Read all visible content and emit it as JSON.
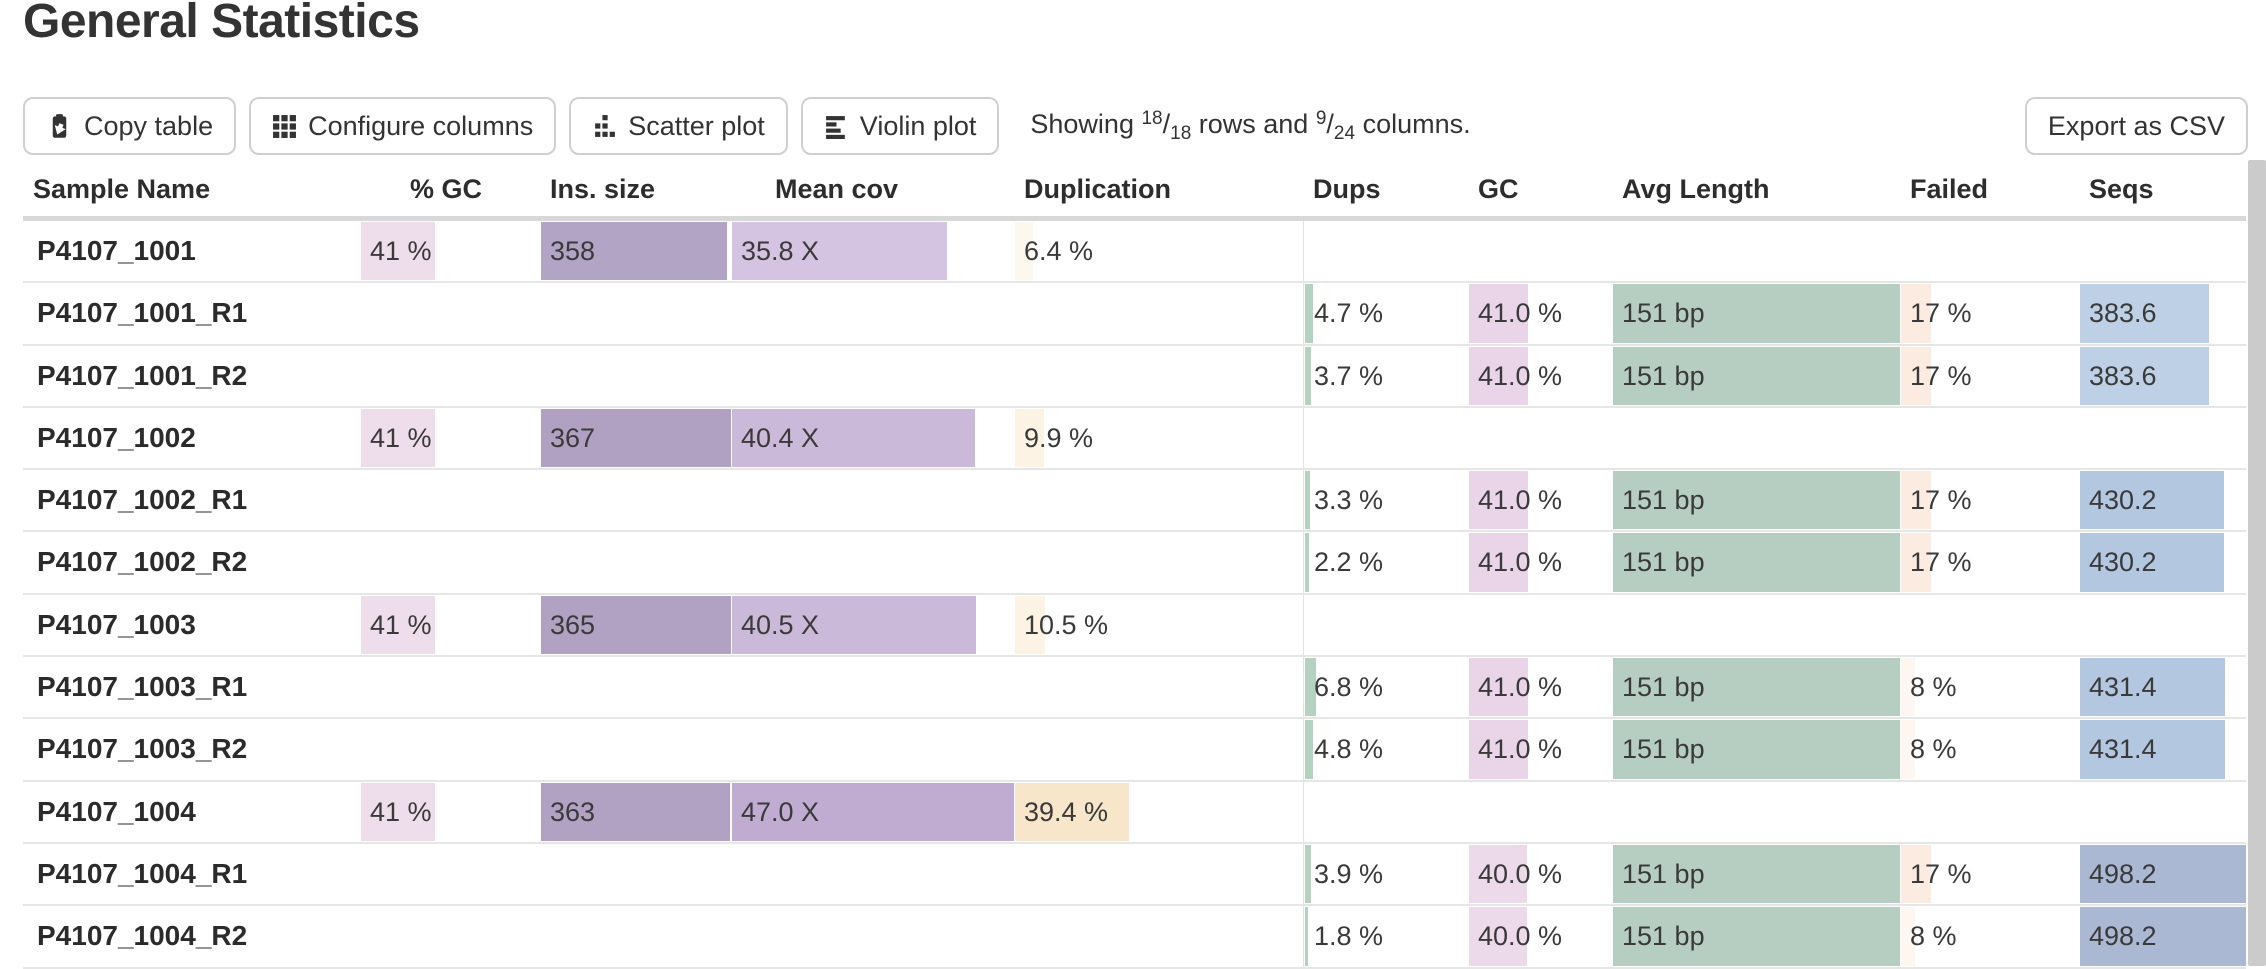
{
  "title": "General Statistics",
  "toolbar": {
    "copy_label": "Copy table",
    "configure_label": "Configure columns",
    "scatter_label": "Scatter plot",
    "violin_label": "Violin plot",
    "export_label": "Export as CSV",
    "showing": {
      "prefix": "Showing ",
      "rows_shown": "18",
      "rows_total": "18",
      "middle": " rows and ",
      "cols_shown": "9",
      "cols_total": "24",
      "suffix": " columns."
    }
  },
  "colors": {
    "scrollbar": "#cbcbcb",
    "header_rule": "#d8d8d8",
    "row_divider": "#e6e6e6",
    "button_border": "#cfcfcf",
    "bar_gc_pink": "#eeddeb",
    "bar_ins_purple": "#b2a4c4",
    "bar_cov_purple": "#c0abd1",
    "bar_dup_peach": "#f8e6cb",
    "bar_dups_green": "#b5d1bf",
    "bar_len_green": "#b6cec2",
    "bar_failed_peach": "#fcebe1",
    "bar_seqs_blue": "#b3c7e0"
  },
  "table": {
    "columns": [
      {
        "key": "sample",
        "label": "Sample Name"
      },
      {
        "key": "pct_gc",
        "label": "% GC"
      },
      {
        "key": "ins_size",
        "label": "Ins. size"
      },
      {
        "key": "mean_cov",
        "label": "Mean cov"
      },
      {
        "key": "duplication",
        "label": "Duplication"
      },
      {
        "key": "dups",
        "label": "Dups"
      },
      {
        "key": "gc",
        "label": "GC"
      },
      {
        "key": "avg_length",
        "label": "Avg Length"
      },
      {
        "key": "failed",
        "label": "Failed"
      },
      {
        "key": "seqs",
        "label": "Seqs"
      }
    ],
    "rows": [
      {
        "sample": "P4107_1001",
        "cells": {
          "pct_gc": {
            "t": "41 %",
            "f": 41,
            "c": "#eeddeb"
          },
          "ins_size": {
            "t": "358",
            "f": 97.5,
            "c": "#b2a4c4"
          },
          "mean_cov": {
            "t": "35.8 X",
            "f": 76,
            "c": "#d4c3e1"
          },
          "duplication": {
            "t": "6.4 %",
            "f": 6.4,
            "c": "#fdf8ee"
          }
        }
      },
      {
        "sample": "P4107_1001_R1",
        "cells": {
          "dups": {
            "t": "4.7 %",
            "f": 4.7,
            "c": "#b5d1bf"
          },
          "gc": {
            "t": "41.0 %",
            "f": 41,
            "c": "#e9d5e7"
          },
          "avg_length": {
            "t": "151 bp",
            "f": 100,
            "c": "#b6cec2"
          },
          "failed": {
            "t": "17 %",
            "f": 17,
            "c": "#fcebe1"
          },
          "seqs": {
            "t": "383.6",
            "f": 77,
            "c": "#bdd0e5"
          }
        }
      },
      {
        "sample": "P4107_1001_R2",
        "cells": {
          "dups": {
            "t": "3.7 %",
            "f": 3.7,
            "c": "#b5d1bf"
          },
          "gc": {
            "t": "41.0 %",
            "f": 41,
            "c": "#e9d5e7"
          },
          "avg_length": {
            "t": "151 bp",
            "f": 100,
            "c": "#b6cec2"
          },
          "failed": {
            "t": "17 %",
            "f": 17,
            "c": "#fcebe1"
          },
          "seqs": {
            "t": "383.6",
            "f": 77,
            "c": "#bdd0e5"
          }
        }
      },
      {
        "sample": "P4107_1002",
        "cells": {
          "pct_gc": {
            "t": "41 %",
            "f": 41,
            "c": "#eeddeb"
          },
          "ins_size": {
            "t": "367",
            "f": 100,
            "c": "#b0a1c2"
          },
          "mean_cov": {
            "t": "40.4 X",
            "f": 86,
            "c": "#cbb9da"
          },
          "duplication": {
            "t": "9.9 %",
            "f": 9.9,
            "c": "#fcf3e4"
          }
        }
      },
      {
        "sample": "P4107_1002_R1",
        "cells": {
          "dups": {
            "t": "3.3 %",
            "f": 3.3,
            "c": "#b5d1bf"
          },
          "gc": {
            "t": "41.0 %",
            "f": 41,
            "c": "#e9d5e7"
          },
          "avg_length": {
            "t": "151 bp",
            "f": 100,
            "c": "#b6cec2"
          },
          "failed": {
            "t": "17 %",
            "f": 17,
            "c": "#fcebe1"
          },
          "seqs": {
            "t": "430.2",
            "f": 86.4,
            "c": "#b3c7e0"
          }
        }
      },
      {
        "sample": "P4107_1002_R2",
        "cells": {
          "dups": {
            "t": "2.2 %",
            "f": 2.2,
            "c": "#b5d1bf"
          },
          "gc": {
            "t": "41.0 %",
            "f": 41,
            "c": "#e9d5e7"
          },
          "avg_length": {
            "t": "151 bp",
            "f": 100,
            "c": "#b6cec2"
          },
          "failed": {
            "t": "17 %",
            "f": 17,
            "c": "#fcebe1"
          },
          "seqs": {
            "t": "430.2",
            "f": 86.4,
            "c": "#b3c7e0"
          }
        }
      },
      {
        "sample": "P4107_1003",
        "cells": {
          "pct_gc": {
            "t": "41 %",
            "f": 41,
            "c": "#eeddeb"
          },
          "ins_size": {
            "t": "365",
            "f": 99.5,
            "c": "#b1a2c3"
          },
          "mean_cov": {
            "t": "40.5 X",
            "f": 86.2,
            "c": "#cbb9da"
          },
          "duplication": {
            "t": "10.5 %",
            "f": 10.5,
            "c": "#fcf3e4"
          }
        }
      },
      {
        "sample": "P4107_1003_R1",
        "cells": {
          "dups": {
            "t": "6.8 %",
            "f": 6.8,
            "c": "#b5d1bf"
          },
          "gc": {
            "t": "41.0 %",
            "f": 41,
            "c": "#e9d5e7"
          },
          "avg_length": {
            "t": "151 bp",
            "f": 100,
            "c": "#b6cec2"
          },
          "failed": {
            "t": "8 %",
            "f": 8,
            "c": "#fdf6f1"
          },
          "seqs": {
            "t": "431.4",
            "f": 86.6,
            "c": "#b3c7e0"
          }
        }
      },
      {
        "sample": "P4107_1003_R2",
        "cells": {
          "dups": {
            "t": "4.8 %",
            "f": 4.8,
            "c": "#b5d1bf"
          },
          "gc": {
            "t": "41.0 %",
            "f": 41,
            "c": "#e9d5e7"
          },
          "avg_length": {
            "t": "151 bp",
            "f": 100,
            "c": "#b6cec2"
          },
          "failed": {
            "t": "8 %",
            "f": 8,
            "c": "#fdf6f1"
          },
          "seqs": {
            "t": "431.4",
            "f": 86.6,
            "c": "#b3c7e0"
          }
        }
      },
      {
        "sample": "P4107_1004",
        "cells": {
          "pct_gc": {
            "t": "41 %",
            "f": 41,
            "c": "#eeddeb"
          },
          "ins_size": {
            "t": "363",
            "f": 98.9,
            "c": "#b1a2c3"
          },
          "mean_cov": {
            "t": "47.0 X",
            "f": 100,
            "c": "#c0abd1"
          },
          "duplication": {
            "t": "39.4 %",
            "f": 39.4,
            "c": "#f8e6cb"
          }
        }
      },
      {
        "sample": "P4107_1004_R1",
        "cells": {
          "dups": {
            "t": "3.9 %",
            "f": 3.9,
            "c": "#b5d1bf"
          },
          "gc": {
            "t": "40.0 %",
            "f": 40,
            "c": "#ecdaea"
          },
          "avg_length": {
            "t": "151 bp",
            "f": 100,
            "c": "#b6cec2"
          },
          "failed": {
            "t": "17 %",
            "f": 17,
            "c": "#fcebe1"
          },
          "seqs": {
            "t": "498.2",
            "f": 100,
            "c": "#abb8d3"
          }
        }
      },
      {
        "sample": "P4107_1004_R2",
        "cells": {
          "dups": {
            "t": "1.8 %",
            "f": 1.8,
            "c": "#b5d1bf"
          },
          "gc": {
            "t": "40.0 %",
            "f": 40,
            "c": "#ecdaea"
          },
          "avg_length": {
            "t": "151 bp",
            "f": 100,
            "c": "#b6cec2"
          },
          "failed": {
            "t": "8 %",
            "f": 8,
            "c": "#fdf6f1"
          },
          "seqs": {
            "t": "498.2",
            "f": 100,
            "c": "#abb8d3"
          }
        }
      }
    ]
  }
}
